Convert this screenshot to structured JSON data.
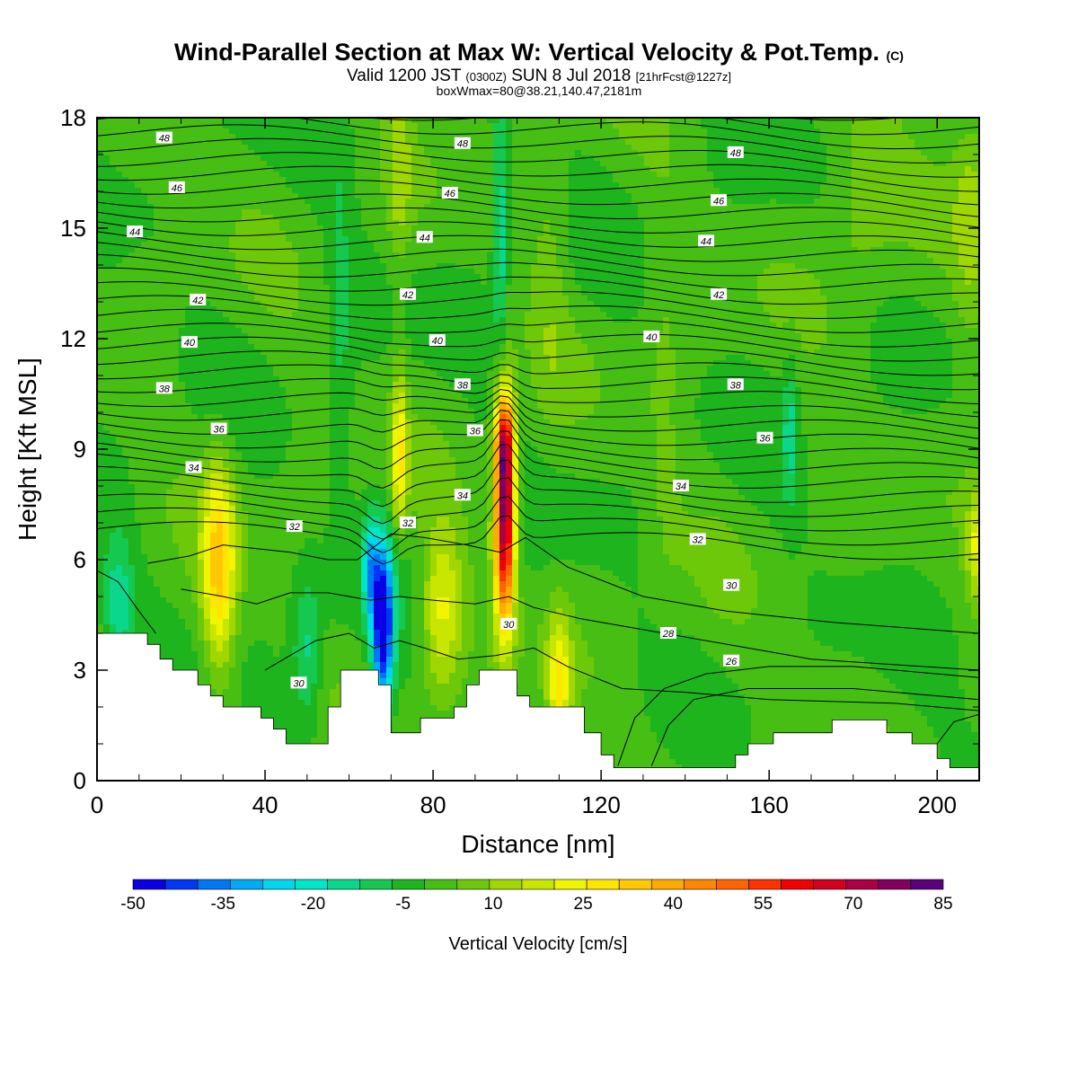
{
  "header": {
    "title_main": "Wind-Parallel Section at Max W: Vertical Velocity & Pot.Temp.",
    "title_mark": "(C)",
    "valid_prefix": "Valid 1200 JST",
    "valid_z": "(0300Z)",
    "valid_date": "SUN 8 Jul 2018",
    "valid_fcst": "[21hrFcst@1227z]",
    "box_info": "boxWmax=80@38.21,140.47,2181m"
  },
  "colors": {
    "background": "#ffffff",
    "terrain": "#ffffff",
    "contour": "#000000",
    "green_base": "#3cbc1e",
    "colorbar": [
      "#0a00e6",
      "#0037f5",
      "#0078f5",
      "#00aaf5",
      "#00d7ee",
      "#00e6c8",
      "#0ad78c",
      "#14c850",
      "#1eb41e",
      "#46be14",
      "#6ec80a",
      "#a0d700",
      "#c8e600",
      "#f0f500",
      "#ffe600",
      "#ffc800",
      "#ffaa00",
      "#ff8700",
      "#ff6400",
      "#ff3200",
      "#f00000",
      "#d2001e",
      "#aa0046",
      "#82005f",
      "#5a007d"
    ]
  },
  "chart_data": {
    "type": "heatmap",
    "xlabel": "Distance [nm]",
    "ylabel": "Height [Kft MSL]",
    "xlim": [
      0,
      210
    ],
    "ylim": [
      0,
      18
    ],
    "xticks": [
      0,
      40,
      80,
      120,
      160,
      200
    ],
    "yticks": [
      0,
      3,
      6,
      9,
      12,
      15,
      18
    ],
    "colorbar": {
      "title": "Vertical Velocity [cm/s]",
      "min": -50,
      "max": 85,
      "step": 5,
      "tick_labels": [
        -50,
        -35,
        -20,
        -5,
        10,
        25,
        40,
        55,
        70,
        85
      ]
    },
    "theta_contours": {
      "units": "C",
      "levels": [
        26,
        28,
        30,
        32,
        34,
        36,
        38,
        40,
        42,
        44,
        46,
        48
      ],
      "labels": [
        {
          "text": "48",
          "x": 16,
          "y": 17.45
        },
        {
          "text": "48",
          "x": 87,
          "y": 17.3
        },
        {
          "text": "48",
          "x": 152,
          "y": 17.05
        },
        {
          "text": "46",
          "x": 19,
          "y": 16.1
        },
        {
          "text": "46",
          "x": 84,
          "y": 15.95
        },
        {
          "text": "46",
          "x": 148,
          "y": 15.75
        },
        {
          "text": "44",
          "x": 9,
          "y": 14.9
        },
        {
          "text": "44",
          "x": 78,
          "y": 14.75
        },
        {
          "text": "44",
          "x": 145,
          "y": 14.65
        },
        {
          "text": "42",
          "x": 24,
          "y": 13.05
        },
        {
          "text": "42",
          "x": 74,
          "y": 13.2
        },
        {
          "text": "42",
          "x": 148,
          "y": 13.2
        },
        {
          "text": "40",
          "x": 22,
          "y": 11.9
        },
        {
          "text": "40",
          "x": 81,
          "y": 11.95
        },
        {
          "text": "40",
          "x": 132,
          "y": 12.05
        },
        {
          "text": "38",
          "x": 16,
          "y": 10.65
        },
        {
          "text": "38",
          "x": 87,
          "y": 10.75
        },
        {
          "text": "38",
          "x": 152,
          "y": 10.75
        },
        {
          "text": "36",
          "x": 29,
          "y": 9.55
        },
        {
          "text": "36",
          "x": 90,
          "y": 9.5
        },
        {
          "text": "36",
          "x": 159,
          "y": 9.3
        },
        {
          "text": "34",
          "x": 23,
          "y": 8.5
        },
        {
          "text": "34",
          "x": 87,
          "y": 7.75
        },
        {
          "text": "34",
          "x": 139,
          "y": 8.0
        },
        {
          "text": "32",
          "x": 47,
          "y": 6.9
        },
        {
          "text": "32",
          "x": 74,
          "y": 7.0
        },
        {
          "text": "32",
          "x": 143,
          "y": 6.55
        },
        {
          "text": "30",
          "x": 151,
          "y": 5.3
        },
        {
          "text": "30",
          "x": 98,
          "y": 4.25
        },
        {
          "text": "30",
          "x": 48,
          "y": 2.65
        },
        {
          "text": "28",
          "x": 136,
          "y": 4.0
        },
        {
          "text": "26",
          "x": 151,
          "y": 3.25
        }
      ]
    },
    "terrain_kft": [
      {
        "x": 0,
        "y": 4.0
      },
      {
        "x": 12,
        "y": 4.0
      },
      {
        "x": 12,
        "y": 3.7
      },
      {
        "x": 15,
        "y": 3.7
      },
      {
        "x": 15,
        "y": 3.3
      },
      {
        "x": 18,
        "y": 3.3
      },
      {
        "x": 18,
        "y": 3.0
      },
      {
        "x": 24,
        "y": 3.0
      },
      {
        "x": 24,
        "y": 2.6
      },
      {
        "x": 27,
        "y": 2.6
      },
      {
        "x": 27,
        "y": 2.3
      },
      {
        "x": 30,
        "y": 2.3
      },
      {
        "x": 30,
        "y": 2.0
      },
      {
        "x": 39,
        "y": 2.0
      },
      {
        "x": 39,
        "y": 1.7
      },
      {
        "x": 42,
        "y": 1.7
      },
      {
        "x": 42,
        "y": 1.4
      },
      {
        "x": 45,
        "y": 1.4
      },
      {
        "x": 45,
        "y": 1.0
      },
      {
        "x": 55,
        "y": 1.0
      },
      {
        "x": 55,
        "y": 2.0
      },
      {
        "x": 58,
        "y": 2.0
      },
      {
        "x": 58,
        "y": 3.0
      },
      {
        "x": 67,
        "y": 3.0
      },
      {
        "x": 67,
        "y": 2.6
      },
      {
        "x": 70,
        "y": 2.6
      },
      {
        "x": 70,
        "y": 1.3
      },
      {
        "x": 77,
        "y": 1.3
      },
      {
        "x": 77,
        "y": 1.7
      },
      {
        "x": 85,
        "y": 1.7
      },
      {
        "x": 85,
        "y": 2.0
      },
      {
        "x": 88,
        "y": 2.0
      },
      {
        "x": 88,
        "y": 2.6
      },
      {
        "x": 91,
        "y": 2.6
      },
      {
        "x": 91,
        "y": 3.0
      },
      {
        "x": 100,
        "y": 3.0
      },
      {
        "x": 100,
        "y": 2.3
      },
      {
        "x": 103,
        "y": 2.3
      },
      {
        "x": 103,
        "y": 2.0
      },
      {
        "x": 116,
        "y": 2.0
      },
      {
        "x": 116,
        "y": 1.3
      },
      {
        "x": 120,
        "y": 1.3
      },
      {
        "x": 120,
        "y": 0.7
      },
      {
        "x": 123,
        "y": 0.7
      },
      {
        "x": 123,
        "y": 0.35
      },
      {
        "x": 152,
        "y": 0.35
      },
      {
        "x": 152,
        "y": 0.7
      },
      {
        "x": 155,
        "y": 0.7
      },
      {
        "x": 155,
        "y": 1.0
      },
      {
        "x": 161,
        "y": 1.0
      },
      {
        "x": 161,
        "y": 1.3
      },
      {
        "x": 175,
        "y": 1.3
      },
      {
        "x": 175,
        "y": 1.65
      },
      {
        "x": 188,
        "y": 1.65
      },
      {
        "x": 188,
        "y": 1.3
      },
      {
        "x": 194,
        "y": 1.3
      },
      {
        "x": 194,
        "y": 1.0
      },
      {
        "x": 200,
        "y": 1.0
      },
      {
        "x": 200,
        "y": 0.6
      },
      {
        "x": 203,
        "y": 0.6
      },
      {
        "x": 203,
        "y": 0.35
      },
      {
        "x": 210,
        "y": 0.35
      }
    ],
    "w_features": [
      {
        "x": 97,
        "y": 7.3,
        "sx": 1.7,
        "sy": 2.1,
        "peak": 80
      },
      {
        "x": 97,
        "y": 9.2,
        "sx": 1.5,
        "sy": 0.8,
        "peak": 28
      },
      {
        "x": 29,
        "y": 5.8,
        "sx": 2.8,
        "sy": 2.0,
        "peak": 32
      },
      {
        "x": 82,
        "y": 4.6,
        "sx": 3.4,
        "sy": 1.6,
        "peak": 22
      },
      {
        "x": 110,
        "y": 2.6,
        "sx": 2.0,
        "sy": 1.3,
        "peak": 26
      },
      {
        "x": 68,
        "y": 4.2,
        "sx": 1.8,
        "sy": 1.6,
        "peak": -52
      },
      {
        "x": 65,
        "y": 5.8,
        "sx": 1.3,
        "sy": 1.0,
        "peak": -22
      },
      {
        "x": 72,
        "y": 8.3,
        "sx": 1.4,
        "sy": 1.2,
        "peak": 18
      },
      {
        "x": 72,
        "y": 10.0,
        "sx": 1.2,
        "sy": 1.4,
        "peak": 12
      },
      {
        "x": 210,
        "y": 6.4,
        "sx": 2.0,
        "sy": 1.0,
        "peak": 22
      },
      {
        "x": 5,
        "y": 4.8,
        "sx": 2.5,
        "sy": 1.2,
        "peak": -15
      },
      {
        "x": 50,
        "y": 3.5,
        "sx": 2.5,
        "sy": 1.5,
        "peak": -14
      },
      {
        "x": 96,
        "y": 15.0,
        "sx": 1.2,
        "sy": 2.5,
        "peak": -18
      },
      {
        "x": 165,
        "y": 9.5,
        "sx": 1.2,
        "sy": 1.4,
        "peak": -13
      },
      {
        "x": 72,
        "y": 16.5,
        "sx": 2.0,
        "sy": 1.8,
        "peak": 10
      },
      {
        "x": 182,
        "y": 16.0,
        "sx": 6.0,
        "sy": 2.5,
        "peak": 8
      },
      {
        "x": 208,
        "y": 15.5,
        "sx": 3.0,
        "sy": 3.0,
        "peak": 10
      },
      {
        "x": 108,
        "y": 14.0,
        "sx": 3.0,
        "sy": 3.0,
        "peak": 6
      },
      {
        "x": 135,
        "y": 10.0,
        "sx": 3.0,
        "sy": 4.0,
        "peak": 5
      },
      {
        "x": 58,
        "y": 12.0,
        "sx": 2.0,
        "sy": 4.0,
        "peak": -7
      }
    ]
  }
}
